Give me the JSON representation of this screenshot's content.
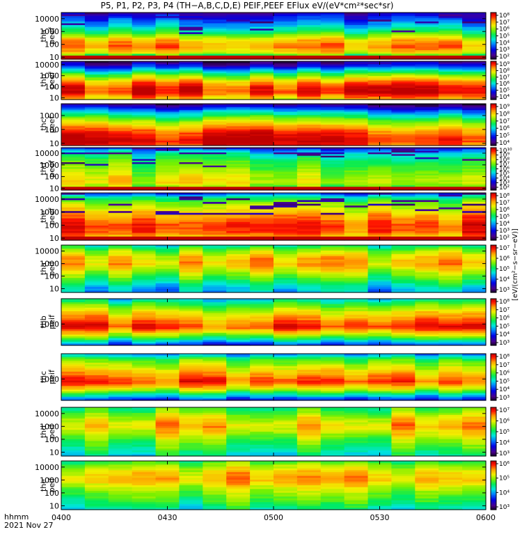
{
  "chart_data": {
    "type": "heatmap",
    "title": "P5, P1, P2, P3, P4 (TH−A,B,C,D,E) PEIF,PEEF EFlux eV/(eV*cm²*sec*sr)",
    "x_ticks": [
      "0400",
      "0430",
      "0500",
      "0530",
      "0600"
    ],
    "x_range": [
      "0400",
      "0600"
    ],
    "x_corner_label": [
      "hhmm",
      "2021 Nov 27"
    ],
    "y_scale": "log",
    "colorbar_label": "[eV/(cm²−s−sr−eV)]",
    "panels": [
      {
        "name": "tha peef",
        "ylabel": [
          "tha",
          "peef"
        ],
        "y_ticks": [
          "10",
          "100",
          "1000",
          "10000"
        ],
        "ylim": [
          7,
          30000
        ],
        "cbar_ticks": [
          "10⁸",
          "10⁷",
          "10⁶",
          "10⁵",
          "10⁴",
          "10³",
          "10²"
        ],
        "cbar_min_exp": 2,
        "cbar_max_exp": 8,
        "profile": [
          [
            7,
            0.15
          ],
          [
            20,
            0.72
          ],
          [
            60,
            0.85
          ],
          [
            200,
            0.78
          ],
          [
            800,
            0.55
          ],
          [
            3000,
            0.38
          ],
          [
            10000,
            0.25
          ],
          [
            30000,
            0.12
          ]
        ],
        "speckle": true,
        "low_cut": 12
      },
      {
        "name": "thb peef",
        "ylabel": [
          "thb",
          "peef"
        ],
        "y_ticks": [
          "10",
          "100",
          "1000",
          "10000"
        ],
        "ylim": [
          7,
          20000
        ],
        "cbar_ticks": [
          "10⁹",
          "10⁸",
          "10⁷",
          "10⁶",
          "10⁵",
          "10⁴"
        ],
        "cbar_min_exp": 3.5,
        "cbar_max_exp": 9,
        "profile": [
          [
            7,
            0.75
          ],
          [
            30,
            0.95
          ],
          [
            100,
            0.92
          ],
          [
            300,
            0.8
          ],
          [
            1000,
            0.62
          ],
          [
            3000,
            0.4
          ],
          [
            8000,
            0.18
          ],
          [
            20000,
            0.05
          ]
        ],
        "speckle": false
      },
      {
        "name": "thc peef",
        "ylabel": [
          "thc",
          "peef"
        ],
        "y_ticks": [
          "10",
          "100",
          "1000"
        ],
        "ylim": [
          7,
          7000
        ],
        "cbar_ticks": [
          "10⁹",
          "10⁸",
          "10⁷",
          "10⁶",
          "10⁵",
          "10⁴"
        ],
        "cbar_min_exp": 3.5,
        "cbar_max_exp": 9,
        "profile": [
          [
            7,
            0.9
          ],
          [
            15,
            0.97
          ],
          [
            60,
            0.9
          ],
          [
            200,
            0.75
          ],
          [
            600,
            0.58
          ],
          [
            2000,
            0.35
          ],
          [
            4000,
            0.18
          ],
          [
            7000,
            0.03
          ]
        ],
        "speckle": false
      },
      {
        "name": "thd peef",
        "ylabel": [
          "thd",
          "peef"
        ],
        "y_ticks": [
          "10",
          "100",
          "1000",
          "10000"
        ],
        "ylim": [
          7,
          30000
        ],
        "cbar_ticks": [
          "10¹⁰",
          "10⁹",
          "10⁸",
          "10⁷",
          "10⁶",
          "10⁵",
          "10⁴",
          "10³",
          "10²"
        ],
        "cbar_min_exp": 2,
        "cbar_max_exp": 10,
        "profile": [
          [
            7,
            0.55
          ],
          [
            30,
            0.7
          ],
          [
            100,
            0.68
          ],
          [
            500,
            0.6
          ],
          [
            2000,
            0.55
          ],
          [
            8000,
            0.45
          ],
          [
            20000,
            0.3
          ],
          [
            30000,
            0.1
          ]
        ],
        "speckle": true,
        "low_cut": 14
      },
      {
        "name": "the peef",
        "ylabel": [
          "the",
          "peef"
        ],
        "y_ticks": [
          "10",
          "100",
          "1000",
          "10000"
        ],
        "ylim": [
          7,
          30000
        ],
        "cbar_ticks": [
          "10⁸",
          "10⁷",
          "10⁶",
          "10⁵",
          "10⁴",
          "10³",
          "10²"
        ],
        "cbar_min_exp": 2,
        "cbar_max_exp": 8,
        "profile": [
          [
            7,
            0.7
          ],
          [
            30,
            0.88
          ],
          [
            100,
            0.9
          ],
          [
            400,
            0.82
          ],
          [
            1500,
            0.72
          ],
          [
            5000,
            0.62
          ],
          [
            15000,
            0.45
          ],
          [
            30000,
            0.2
          ]
        ],
        "speckle": true,
        "low_cut": 12
      },
      {
        "name": "tha peif",
        "ylabel": [
          "tha",
          "peif"
        ],
        "y_ticks": [
          "10",
          "100",
          "1000",
          "10000"
        ],
        "ylim": [
          5,
          30000
        ],
        "cbar_ticks": [
          "10⁷",
          "10⁶",
          "10⁵",
          "10⁴",
          "10³"
        ],
        "cbar_min_exp": 3,
        "cbar_max_exp": 7.5,
        "profile": [
          [
            5,
            0.35
          ],
          [
            15,
            0.42
          ],
          [
            60,
            0.55
          ],
          [
            200,
            0.65
          ],
          [
            800,
            0.78
          ],
          [
            3000,
            0.75
          ],
          [
            10000,
            0.62
          ],
          [
            30000,
            0.45
          ]
        ],
        "speckle": false
      },
      {
        "name": "thb peif",
        "ylabel": [
          "thb",
          "peif"
        ],
        "y_ticks": [
          "1000"
        ],
        "ylim": [
          80,
          20000
        ],
        "cbar_ticks": [
          "10⁸",
          "10⁷",
          "10⁶",
          "10⁵",
          "10⁴",
          "10³"
        ],
        "cbar_min_exp": 3,
        "cbar_max_exp": 8.3,
        "profile": [
          [
            80,
            0.2
          ],
          [
            150,
            0.45
          ],
          [
            300,
            0.68
          ],
          [
            700,
            0.9
          ],
          [
            1500,
            0.82
          ],
          [
            4000,
            0.7
          ],
          [
            10000,
            0.55
          ],
          [
            20000,
            0.38
          ]
        ],
        "speckle": false
      },
      {
        "name": "thc peif",
        "ylabel": [
          "thc",
          "peif"
        ],
        "y_ticks": [
          "1000"
        ],
        "ylim": [
          80,
          20000
        ],
        "cbar_ticks": [
          "10⁸",
          "10⁷",
          "10⁶",
          "10⁵",
          "10⁴",
          "10³"
        ],
        "cbar_min_exp": 3,
        "cbar_max_exp": 8.3,
        "profile": [
          [
            80,
            0.18
          ],
          [
            150,
            0.42
          ],
          [
            300,
            0.68
          ],
          [
            700,
            0.88
          ],
          [
            1500,
            0.8
          ],
          [
            4000,
            0.68
          ],
          [
            10000,
            0.55
          ],
          [
            20000,
            0.3
          ]
        ],
        "speckle": false
      },
      {
        "name": "thd peif",
        "ylabel": [
          "thd",
          "peif"
        ],
        "y_ticks": [
          "10",
          "100",
          "1000",
          "10000"
        ],
        "ylim": [
          5,
          30000
        ],
        "cbar_ticks": [
          "10⁷",
          "10⁶",
          "10⁵",
          "10⁴",
          "10³"
        ],
        "cbar_min_exp": 3,
        "cbar_max_exp": 7.3,
        "profile": [
          [
            5,
            0.45
          ],
          [
            20,
            0.55
          ],
          [
            80,
            0.62
          ],
          [
            300,
            0.72
          ],
          [
            1000,
            0.8
          ],
          [
            4000,
            0.72
          ],
          [
            12000,
            0.62
          ],
          [
            30000,
            0.55
          ]
        ],
        "speckle": false
      },
      {
        "name": "the peif",
        "ylabel": [
          "the",
          "peif"
        ],
        "y_ticks": [
          "10",
          "100",
          "1000",
          "10000"
        ],
        "ylim": [
          5,
          30000
        ],
        "cbar_ticks": [
          "10⁶",
          "10⁵",
          "10⁴",
          "10³"
        ],
        "cbar_min_exp": 3,
        "cbar_max_exp": 6.8,
        "profile": [
          [
            5,
            0.45
          ],
          [
            20,
            0.55
          ],
          [
            80,
            0.62
          ],
          [
            300,
            0.7
          ],
          [
            1000,
            0.8
          ],
          [
            4000,
            0.75
          ],
          [
            12000,
            0.65
          ],
          [
            30000,
            0.55
          ]
        ],
        "speckle": false
      }
    ]
  }
}
